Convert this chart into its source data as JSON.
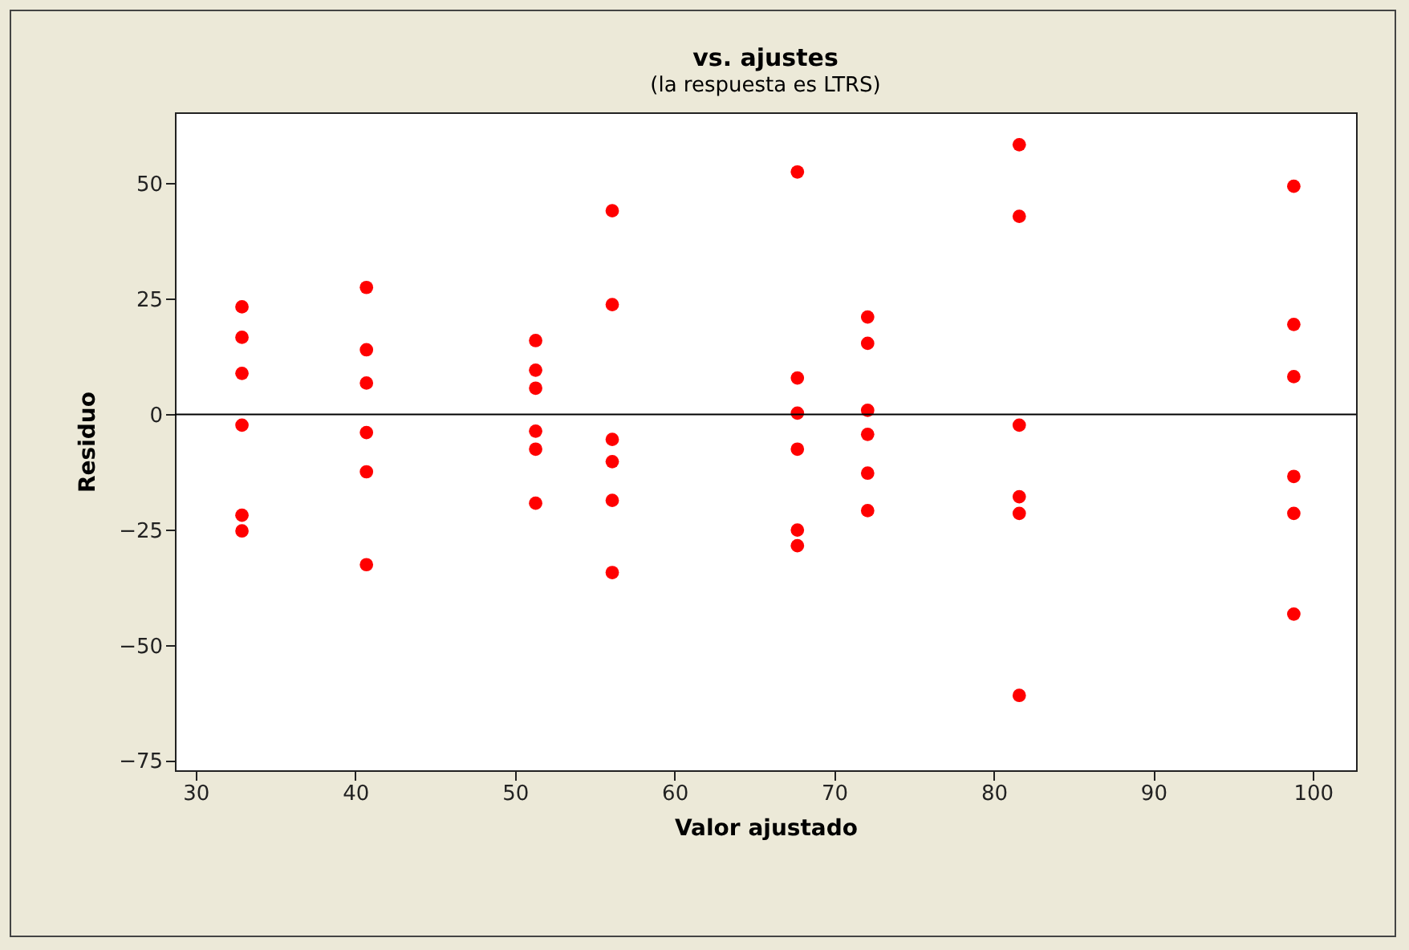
{
  "chart_data": {
    "type": "scatter",
    "title": "vs. ajustes",
    "subtitle": "(la respuesta es LTRS)",
    "xlabel": "Valor ajustado",
    "ylabel": "Residuo",
    "xlim": [
      28.7,
      102.7
    ],
    "xticks": [
      30,
      40,
      50,
      60,
      70,
      80,
      90,
      100
    ],
    "ylim": [
      -77,
      65.4
    ],
    "yticks": [
      -75,
      -50,
      -25,
      0,
      25,
      50
    ],
    "grid": false,
    "marker": "circle",
    "ref_lines": [
      {
        "axis": "y",
        "value": 0,
        "color": "#000000"
      }
    ],
    "series": [
      {
        "color": "#ff0000",
        "x": [
          32.9,
          32.9,
          32.9,
          32.9,
          32.9,
          32.9,
          40.7,
          40.7,
          40.7,
          40.7,
          40.7,
          40.7,
          51.3,
          51.3,
          51.3,
          51.3,
          51.3,
          51.3,
          56.1,
          56.1,
          56.1,
          56.1,
          56.1,
          56.1,
          67.7,
          67.7,
          67.7,
          67.7,
          67.7,
          67.7,
          72.1,
          72.1,
          72.1,
          72.1,
          72.1,
          72.1,
          81.6,
          81.6,
          81.6,
          81.6,
          81.6,
          81.6,
          98.8,
          98.8,
          98.8,
          98.8,
          98.8,
          98.8
        ],
        "values": [
          23.3,
          16.7,
          8.9,
          -2.3,
          -21.8,
          -25.2,
          27.5,
          14.0,
          6.8,
          -3.9,
          -12.4,
          -32.5,
          16.0,
          9.6,
          5.7,
          -3.6,
          -7.5,
          -19.2,
          44.1,
          23.8,
          -5.4,
          -10.2,
          -18.6,
          -34.2,
          52.5,
          7.9,
          0.3,
          -7.5,
          -25.0,
          -28.4,
          21.1,
          15.4,
          0.9,
          -4.3,
          -12.7,
          -20.8,
          58.4,
          42.9,
          -2.3,
          -17.8,
          -21.4,
          -60.8,
          49.4,
          19.5,
          8.2,
          -13.4,
          -21.4,
          -43.2
        ]
      }
    ]
  }
}
